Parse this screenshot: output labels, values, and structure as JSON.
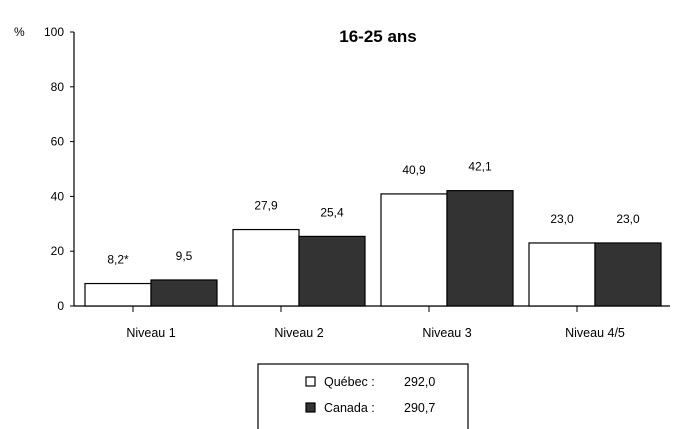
{
  "chart_data": {
    "type": "bar",
    "title": "16-25 ans",
    "ylabel": "%",
    "ylim": [
      0,
      100
    ],
    "yticks": [
      0,
      20,
      40,
      60,
      80,
      100
    ],
    "categories": [
      "Niveau 1",
      "Niveau 2",
      "Niveau 3",
      "Niveau 4/5"
    ],
    "series": [
      {
        "name": "Québec",
        "legend_label": "Québec :",
        "legend_value": "292,0",
        "color": "#ffffff",
        "values": [
          8.2,
          27.9,
          40.9,
          23.0
        ],
        "labels": [
          "8,2*",
          "27,9",
          "40,9",
          "23,0"
        ]
      },
      {
        "name": "Canada",
        "legend_label": "Canada :",
        "legend_value": "290,7",
        "color": "#333333",
        "values": [
          9.5,
          25.4,
          42.1,
          23.0
        ],
        "labels": [
          "9,5",
          "25,4",
          "42,1",
          "23,0"
        ]
      }
    ],
    "legend_position": "bottom-center",
    "grid": false
  }
}
